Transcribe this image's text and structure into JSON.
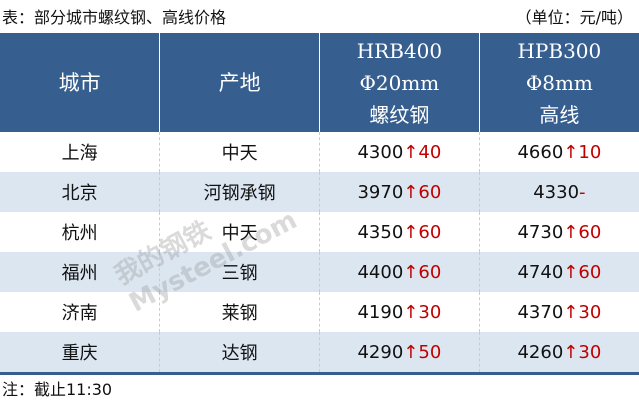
{
  "title": "表：部分城市螺纹钢、高线价格",
  "unit": "（单位：元/吨）",
  "headers": {
    "city": "城市",
    "origin": "产地",
    "hrb": [
      "HRB400",
      "Φ20mm",
      "螺纹钢"
    ],
    "hpb": [
      "HPB300",
      "Φ8mm",
      "高线"
    ]
  },
  "rows": [
    {
      "city": "上海",
      "origin": "中天",
      "hrb": "4300",
      "hrb_chg": "↑40",
      "hpb": "4660",
      "hpb_chg": "↑10"
    },
    {
      "city": "北京",
      "origin": "河钢承钢",
      "hrb": "3970",
      "hrb_chg": "↑60",
      "hpb": "4330",
      "hpb_chg": "-"
    },
    {
      "city": "杭州",
      "origin": "中天",
      "hrb": "4350",
      "hrb_chg": "↑60",
      "hpb": "4730",
      "hpb_chg": "↑60"
    },
    {
      "city": "福州",
      "origin": "三钢",
      "hrb": "4400",
      "hrb_chg": "↑60",
      "hpb": "4740",
      "hpb_chg": "↑60"
    },
    {
      "city": "济南",
      "origin": "莱钢",
      "hrb": "4190",
      "hrb_chg": "↑30",
      "hpb": "4370",
      "hpb_chg": "↑30"
    },
    {
      "city": "重庆",
      "origin": "达钢",
      "hrb": "4290",
      "hrb_chg": "↑50",
      "hpb": "4260",
      "hpb_chg": "↑30"
    }
  ],
  "watermark": "我的钢铁 Mysteel.com",
  "note": "注：截止11:30",
  "colors": {
    "header": "#365e8f",
    "alt_row": "#dce6f1",
    "up": "#c00000"
  }
}
